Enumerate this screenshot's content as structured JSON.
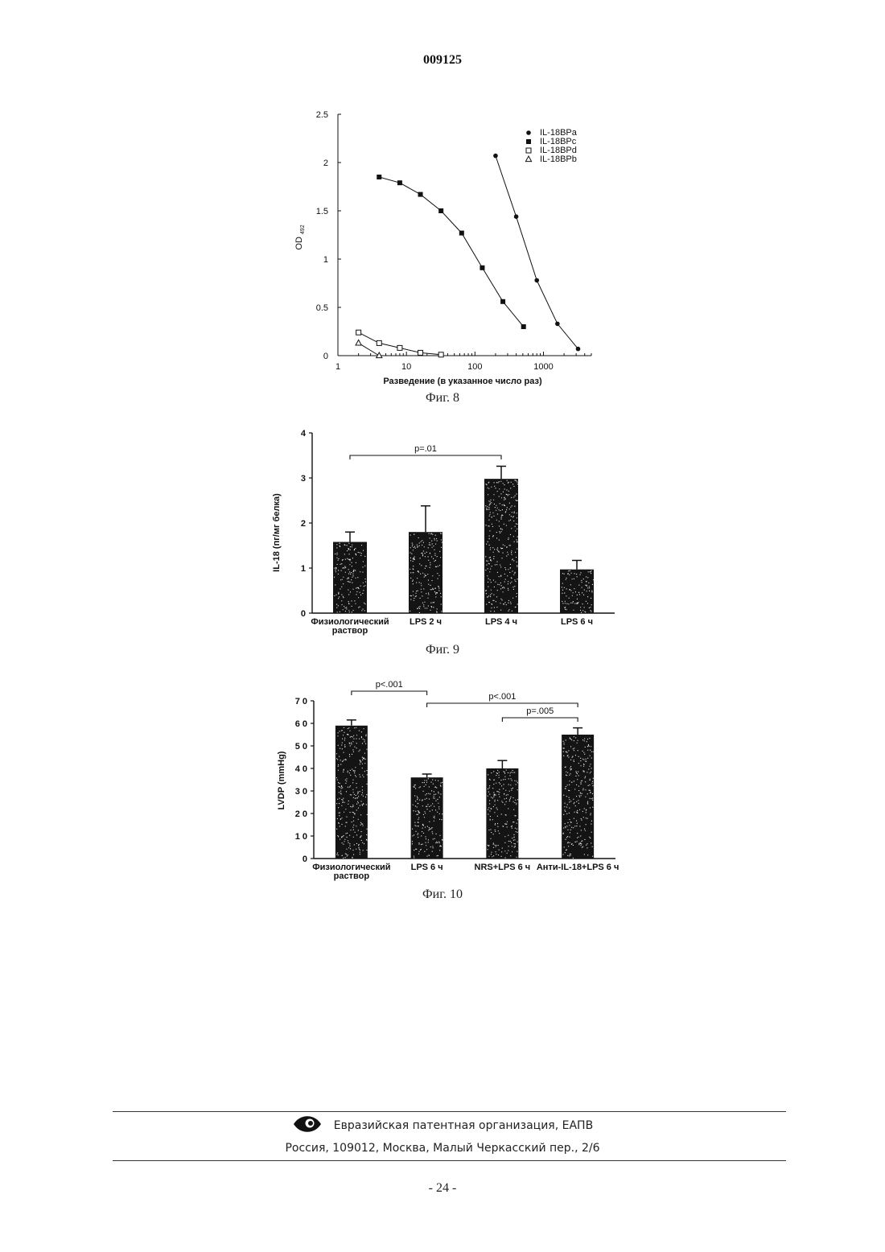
{
  "header": {
    "doc_number": "009125"
  },
  "footer": {
    "org": "Евразийская патентная организация, ЕАПВ",
    "address": "Россия, 109012, Москва, Малый Черкасский пер., 2/6",
    "page": "- 24 -"
  },
  "chart_data": [
    {
      "type": "scatter",
      "caption": "Фиг. 8",
      "xlabel": "Разведение (в указанное число раз)",
      "ylabel": "OD",
      "ylabel_sub": "492",
      "xscale": "log",
      "xlim": [
        1,
        5000
      ],
      "ylim": [
        0,
        2.5
      ],
      "xticks": [
        1,
        10,
        100,
        1000
      ],
      "xtick_labels": [
        "1",
        "10",
        "100",
        "1000"
      ],
      "yticks": [
        0,
        0.5,
        1,
        1.5,
        2,
        2.5
      ],
      "ytick_labels": [
        "0",
        "0.5",
        "1",
        "1.5",
        "2",
        "2.5"
      ],
      "legend_position": "top-right",
      "series": [
        {
          "name": "IL-18BPa",
          "marker": "circle-filled",
          "x": [
            200,
            400,
            800,
            1600,
            3200
          ],
          "y": [
            2.07,
            1.44,
            0.78,
            0.33,
            0.07
          ]
        },
        {
          "name": "IL-18BPc",
          "marker": "square-filled",
          "x": [
            4,
            8,
            16,
            32,
            64,
            128,
            256,
            512
          ],
          "y": [
            1.85,
            1.79,
            1.67,
            1.5,
            1.27,
            0.91,
            0.56,
            0.3
          ]
        },
        {
          "name": "IL-18BPd",
          "marker": "square-open",
          "x": [
            2,
            4,
            8,
            16,
            32
          ],
          "y": [
            0.24,
            0.13,
            0.08,
            0.03,
            0.01
          ]
        },
        {
          "name": "IL-18BPb",
          "marker": "triangle-open",
          "x": [
            2,
            4
          ],
          "y": [
            0.13,
            0.0
          ]
        }
      ]
    },
    {
      "type": "bar",
      "caption": "Фиг. 9",
      "ylabel": "IL-18 (пг/мг белка)",
      "ylim": [
        0,
        4
      ],
      "yticks": [
        0,
        1,
        2,
        3,
        4
      ],
      "ytick_labels": [
        "0",
        "1",
        "2",
        "3",
        "4"
      ],
      "categories": [
        [
          "Физиологический",
          "раствор"
        ],
        [
          "LPS 2 ч"
        ],
        [
          "LPS 4 ч"
        ],
        [
          "LPS 6 ч"
        ]
      ],
      "values": [
        1.58,
        1.8,
        2.98,
        0.97
      ],
      "errors": [
        0.22,
        0.58,
        0.28,
        0.2
      ],
      "significance": [
        {
          "from": 0,
          "to": 2,
          "label": "p=.01"
        }
      ]
    },
    {
      "type": "bar",
      "caption": "Фиг. 10",
      "ylabel": "LVDP (mmHg)",
      "ylim": [
        0,
        70
      ],
      "yticks": [
        0,
        10,
        20,
        30,
        40,
        50,
        60,
        70
      ],
      "ytick_labels": [
        "0",
        "1 0",
        "2 0",
        "3 0",
        "4 0",
        "5 0",
        "6 0",
        "7 0"
      ],
      "categories": [
        [
          "Физиологический",
          "раствор"
        ],
        [
          "LPS 6 ч"
        ],
        [
          "NRS+LPS 6 ч"
        ],
        [
          "Анти-IL-18+LPS 6 ч"
        ]
      ],
      "values": [
        59,
        36,
        40,
        55
      ],
      "errors": [
        2.5,
        1.5,
        3.5,
        3
      ],
      "significance": [
        {
          "from": 0,
          "to": 1,
          "label": "p<.001"
        },
        {
          "from": 1,
          "to": 3,
          "label": "p<.001"
        },
        {
          "from": 2,
          "to": 3,
          "label": "p=.005"
        }
      ]
    }
  ]
}
